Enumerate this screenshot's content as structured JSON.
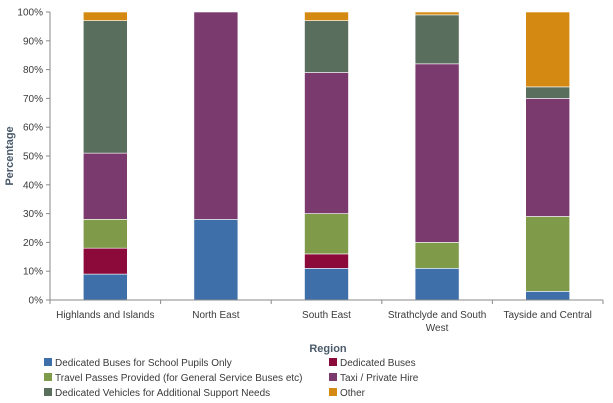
{
  "chart_data": {
    "type": "bar",
    "stacked": true,
    "title": "",
    "xlabel": "Region",
    "ylabel": "Percentage",
    "ylim": [
      0,
      100
    ],
    "y_ticks": [
      "0%",
      "10%",
      "20%",
      "30%",
      "40%",
      "50%",
      "60%",
      "70%",
      "80%",
      "90%",
      "100%"
    ],
    "categories": [
      [
        "Highlands and Islands"
      ],
      [
        "North East"
      ],
      [
        "South East"
      ],
      [
        "Strathclyde and South",
        "West"
      ],
      [
        "Tayside and Central"
      ]
    ],
    "grid": false,
    "legend_position": "bottom",
    "series": [
      {
        "name": "Dedicated Buses for School Pupils Only",
        "color": "#3f6fa8",
        "values": [
          9,
          28,
          11,
          11,
          3
        ]
      },
      {
        "name": "Dedicated Buses",
        "color": "#8b0a3a",
        "values": [
          9,
          0,
          5,
          0,
          0
        ]
      },
      {
        "name": "Travel Passes Provided (for General Service Buses etc)",
        "color": "#7f9a48",
        "values": [
          10,
          0,
          14,
          9,
          26
        ]
      },
      {
        "name": "Taxi / Private Hire",
        "color": "#7a3a6e",
        "values": [
          23,
          72,
          49,
          62,
          41
        ]
      },
      {
        "name": "Dedicated Vehicles for Additional Support Needs",
        "color": "#5a6e5e",
        "values": [
          46,
          0,
          18,
          17,
          4
        ]
      },
      {
        "name": "Other",
        "color": "#d48a12",
        "values": [
          3,
          0,
          3,
          1,
          26
        ]
      }
    ]
  }
}
